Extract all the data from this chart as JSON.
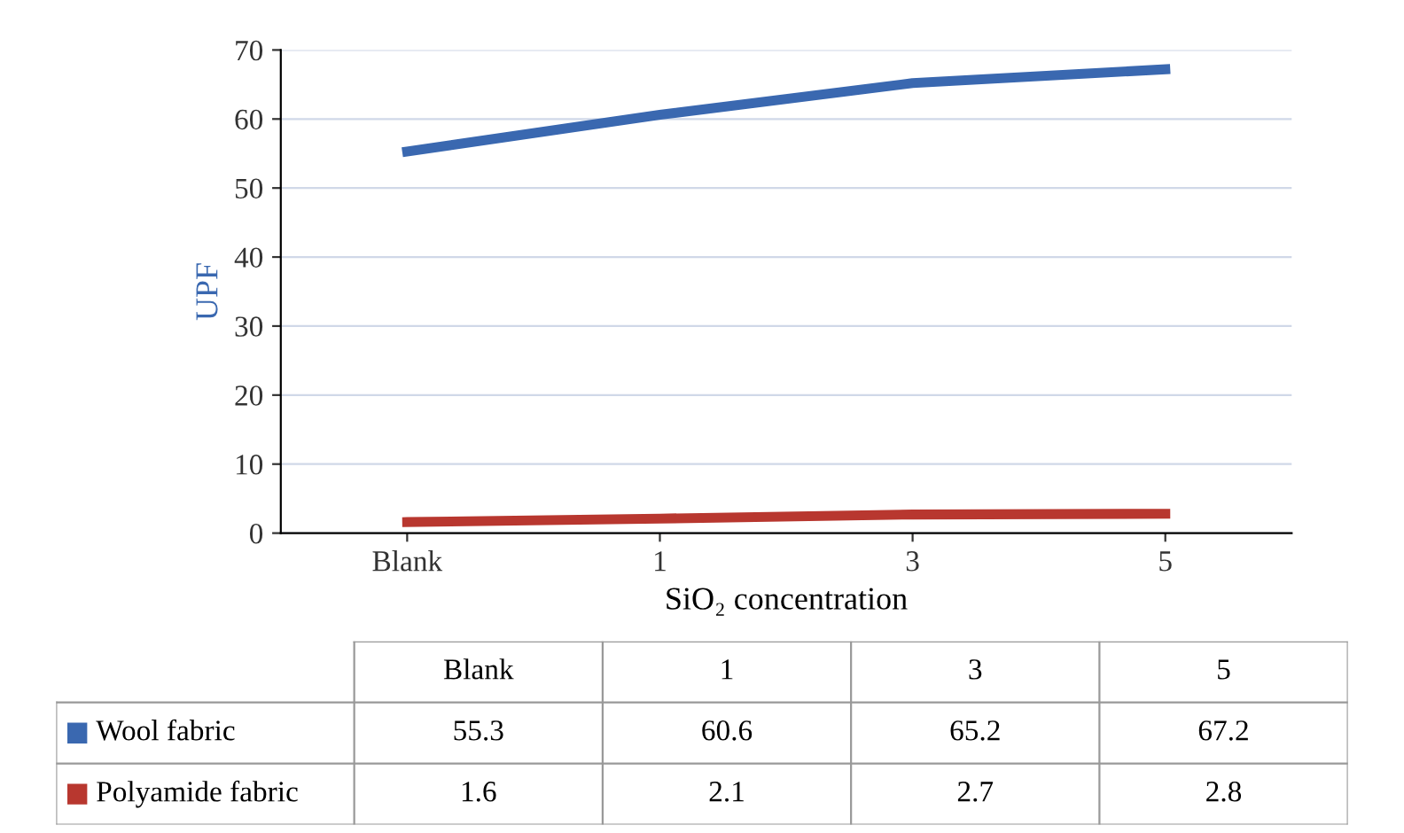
{
  "chart_data": {
    "type": "line",
    "ylabel": "UPF",
    "xlabel": "SiO₂ concentration",
    "categories": [
      "Blank",
      "1",
      "3",
      "5"
    ],
    "series": [
      {
        "name": "Wool fabric",
        "color": "#3a68b0",
        "values": [
          55.3,
          60.6,
          65.2,
          67.2
        ]
      },
      {
        "name": "Polyamide fabric",
        "color": "#b8372f",
        "values": [
          1.6,
          2.1,
          2.7,
          2.8
        ]
      }
    ],
    "ylim": [
      0,
      70
    ],
    "yticks": [
      0,
      10,
      20,
      30,
      40,
      50,
      60,
      70
    ],
    "grid": "y",
    "data_labels": true,
    "legend": "bottom",
    "marker": "none",
    "line_style": "solid"
  }
}
